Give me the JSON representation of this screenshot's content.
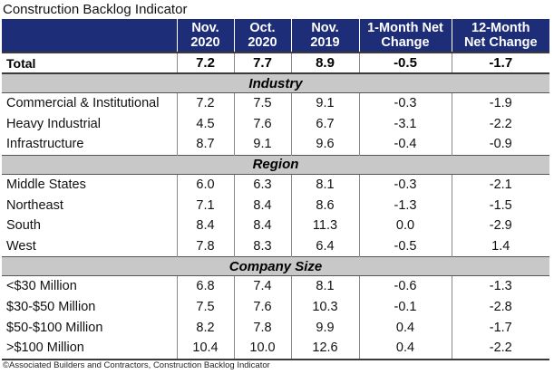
{
  "title": "Construction Backlog Indicator",
  "columns": [
    {
      "line1": "",
      "line2": ""
    },
    {
      "line1": "Nov.",
      "line2": "2020"
    },
    {
      "line1": "Oct.",
      "line2": "2020"
    },
    {
      "line1": "Nov.",
      "line2": "2019"
    },
    {
      "line1": "1-Month Net",
      "line2": "Change"
    },
    {
      "line1": "12-Month",
      "line2": "Net Change"
    }
  ],
  "total": {
    "label": "Total",
    "nov2020": "7.2",
    "oct2020": "7.7",
    "nov2019": "8.9",
    "m1": "-0.5",
    "m12": "-1.7"
  },
  "sections": [
    {
      "title": "Industry",
      "rows": [
        {
          "label": "Commercial & Institutional",
          "nov2020": "7.2",
          "oct2020": "7.5",
          "nov2019": "9.1",
          "m1": "-0.3",
          "m12": "-1.9"
        },
        {
          "label": "Heavy Industrial",
          "nov2020": "4.5",
          "oct2020": "7.6",
          "nov2019": "6.7",
          "m1": "-3.1",
          "m12": "-2.2"
        },
        {
          "label": "Infrastructure",
          "nov2020": "8.7",
          "oct2020": "9.1",
          "nov2019": "9.6",
          "m1": "-0.4",
          "m12": "-0.9"
        }
      ]
    },
    {
      "title": "Region",
      "rows": [
        {
          "label": "Middle States",
          "nov2020": "6.0",
          "oct2020": "6.3",
          "nov2019": "8.1",
          "m1": "-0.3",
          "m12": "-2.1"
        },
        {
          "label": "Northeast",
          "nov2020": "7.1",
          "oct2020": "8.4",
          "nov2019": "8.6",
          "m1": "-1.3",
          "m12": "-1.5"
        },
        {
          "label": "South",
          "nov2020": "8.4",
          "oct2020": "8.4",
          "nov2019": "11.3",
          "m1": "0.0",
          "m12": "-2.9"
        },
        {
          "label": "West",
          "nov2020": "7.8",
          "oct2020": "8.3",
          "nov2019": "6.4",
          "m1": "-0.5",
          "m12": "1.4"
        }
      ]
    },
    {
      "title": "Company Size",
      "rows": [
        {
          "label": "<$30 Million",
          "nov2020": "6.8",
          "oct2020": "7.4",
          "nov2019": "8.1",
          "m1": "-0.6",
          "m12": "-1.3"
        },
        {
          "label": "$30-$50 Million",
          "nov2020": "7.5",
          "oct2020": "7.6",
          "nov2019": "10.3",
          "m1": "-0.1",
          "m12": "-2.8"
        },
        {
          "label": "$50-$100 Million",
          "nov2020": "8.2",
          "oct2020": "7.8",
          "nov2019": "9.9",
          "m1": "0.4",
          "m12": "-1.7"
        },
        {
          "label": ">$100 Million",
          "nov2020": "10.4",
          "oct2020": "10.0",
          "nov2019": "12.6",
          "m1": "0.4",
          "m12": "-2.2"
        }
      ]
    }
  ],
  "footer": "©Associated Builders and Contractors, Construction Backlog Indicator"
}
